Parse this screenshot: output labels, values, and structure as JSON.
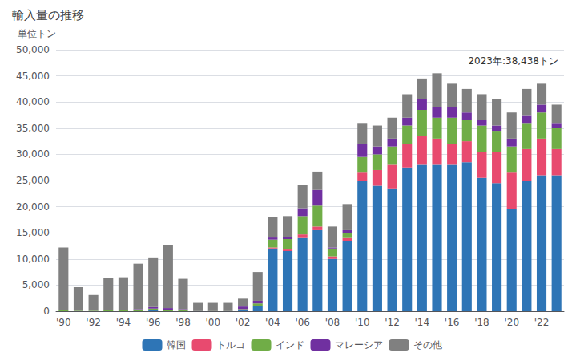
{
  "chart_data": {
    "type": "bar",
    "title": "輸入量の推移",
    "ylabel": "単位トン",
    "annotation": "2023年:38,438トン",
    "stacked": true,
    "grid": true,
    "legend": "bottom",
    "categories": [
      "'90",
      null,
      "'92",
      null,
      "'94",
      null,
      "'96",
      null,
      "'98",
      null,
      "'00",
      null,
      "'02",
      null,
      "'04",
      null,
      "'06",
      null,
      "'08",
      null,
      "'10",
      null,
      "'12",
      null,
      "'14",
      null,
      "'16",
      null,
      "'18",
      null,
      "'20",
      null,
      "'22",
      null
    ],
    "series": [
      {
        "name": "韓国",
        "color": "#2E75B6",
        "values": [
          0,
          0,
          0,
          0,
          0,
          0,
          200,
          0,
          0,
          0,
          0,
          0,
          200,
          1000,
          12000,
          11500,
          14000,
          15500,
          10000,
          13500,
          25000,
          24000,
          23500,
          27500,
          28000,
          28000,
          28000,
          28500,
          25500,
          24500,
          19500,
          25000,
          26000,
          26000
        ]
      },
      {
        "name": "トルコ",
        "color": "#E84A6F",
        "values": [
          0,
          0,
          0,
          0,
          0,
          0,
          0,
          0,
          0,
          0,
          0,
          0,
          0,
          0,
          200,
          300,
          700,
          700,
          500,
          500,
          1500,
          3000,
          4500,
          4500,
          5500,
          5000,
          4000,
          4000,
          5000,
          6000,
          7000,
          6000,
          7000,
          5000
        ]
      },
      {
        "name": "インド",
        "color": "#70AD47",
        "values": [
          200,
          100,
          100,
          200,
          200,
          300,
          300,
          300,
          200,
          100,
          100,
          100,
          200,
          500,
          1500,
          2000,
          3500,
          4000,
          1500,
          1000,
          3000,
          3000,
          3500,
          3500,
          5000,
          4000,
          5000,
          4000,
          5000,
          4000,
          5000,
          5000,
          5000,
          4000
        ]
      },
      {
        "name": "マレーシア",
        "color": "#7030A0",
        "values": [
          0,
          0,
          0,
          100,
          100,
          100,
          300,
          300,
          200,
          100,
          100,
          100,
          500,
          500,
          400,
          400,
          1500,
          3000,
          200,
          500,
          2500,
          1500,
          1500,
          1500,
          2000,
          2000,
          2000,
          1500,
          1000,
          1000,
          1500,
          1500,
          1500,
          1000
        ]
      },
      {
        "name": "その他",
        "color": "#808080",
        "values": [
          12000,
          4500,
          3000,
          6000,
          6200,
          8700,
          9500,
          12000,
          5800,
          1400,
          1400,
          1400,
          1500,
          5500,
          4000,
          4000,
          4500,
          3500,
          4000,
          5000,
          4000,
          4000,
          4000,
          4500,
          4000,
          6500,
          4500,
          4500,
          5000,
          5000,
          5000,
          5000,
          4000,
          3500
        ]
      }
    ],
    "ylim": [
      0,
      50000
    ],
    "yticks": [
      0,
      {
        "value": 5000,
        "label": "5,000"
      },
      {
        "value": 10000,
        "label": "10,000"
      },
      {
        "value": 15000,
        "label": "15,000"
      },
      {
        "value": 20000,
        "label": "20,000"
      },
      {
        "value": 25000,
        "label": "25,000"
      },
      {
        "value": 30000,
        "label": "30,000"
      },
      {
        "value": 35000,
        "label": "35,000"
      },
      {
        "value": 40000,
        "label": "40,000"
      },
      {
        "value": 45000,
        "label": "45,000"
      },
      {
        "value": 50000,
        "label": "50,000"
      }
    ]
  }
}
